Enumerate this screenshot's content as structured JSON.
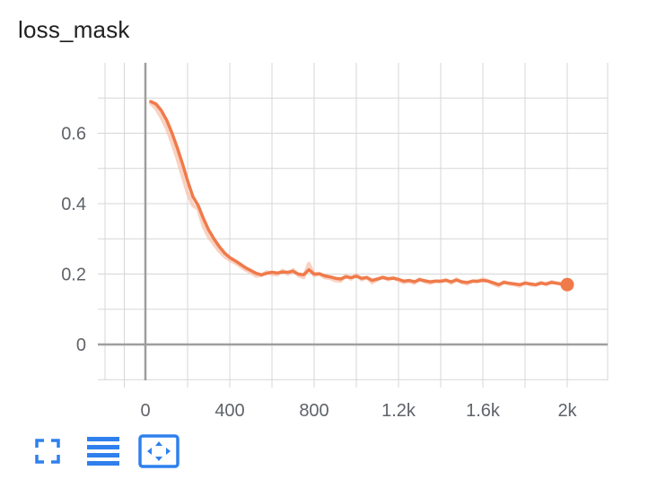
{
  "card": {
    "title": "loss_mask"
  },
  "toolbar": {
    "buttons": [
      {
        "icon": "fullscreen-icon"
      },
      {
        "icon": "data-table-icon"
      },
      {
        "icon": "fit-domain-icon"
      }
    ]
  },
  "colors": {
    "series": "#f07a4a",
    "series_raw": "#f7c3ad",
    "grid": "#d7d7d7",
    "axis": "#9e9e9e",
    "icon": "#2f80ed"
  },
  "chart_data": {
    "type": "line",
    "title": "loss_mask",
    "xlabel": "",
    "ylabel": "",
    "xlim": [
      -100,
      2200
    ],
    "ylim": [
      -0.1,
      0.8
    ],
    "x_ticks": [
      0,
      400,
      800,
      1200,
      1600,
      2000
    ],
    "x_tick_labels": [
      "0",
      "400",
      "800",
      "1.2k",
      "1.6k",
      "2k"
    ],
    "y_ticks": [
      0,
      0.2,
      0.4,
      0.6
    ],
    "y_tick_labels": [
      "0",
      "0.2",
      "0.4",
      "0.6"
    ],
    "grid": true,
    "series": [
      {
        "smoothed": true,
        "x": [
          25,
          50,
          75,
          100,
          125,
          150,
          175,
          200,
          225,
          250,
          275,
          300,
          325,
          350,
          375,
          400,
          425,
          450,
          475,
          500,
          525,
          550,
          575,
          600,
          625,
          650,
          675,
          700,
          725,
          750,
          775,
          800,
          825,
          850,
          875,
          900,
          925,
          950,
          975,
          1000,
          1025,
          1050,
          1075,
          1100,
          1125,
          1150,
          1175,
          1200,
          1225,
          1250,
          1275,
          1300,
          1325,
          1350,
          1375,
          1400,
          1425,
          1450,
          1475,
          1500,
          1525,
          1550,
          1575,
          1600,
          1625,
          1650,
          1675,
          1700,
          1725,
          1750,
          1775,
          1800,
          1825,
          1850,
          1875,
          1900,
          1925,
          1950,
          1975,
          2000
        ],
        "y": [
          0.69,
          0.683,
          0.665,
          0.638,
          0.602,
          0.56,
          0.515,
          0.465,
          0.42,
          0.395,
          0.358,
          0.325,
          0.3,
          0.278,
          0.26,
          0.247,
          0.238,
          0.228,
          0.218,
          0.21,
          0.202,
          0.198,
          0.202,
          0.205,
          0.203,
          0.206,
          0.205,
          0.208,
          0.2,
          0.198,
          0.212,
          0.2,
          0.201,
          0.195,
          0.192,
          0.188,
          0.186,
          0.192,
          0.19,
          0.194,
          0.188,
          0.19,
          0.182,
          0.186,
          0.19,
          0.187,
          0.188,
          0.185,
          0.18,
          0.182,
          0.178,
          0.184,
          0.181,
          0.178,
          0.18,
          0.18,
          0.182,
          0.178,
          0.183,
          0.178,
          0.176,
          0.18,
          0.18,
          0.182,
          0.18,
          0.175,
          0.17,
          0.176,
          0.174,
          0.172,
          0.17,
          0.174,
          0.172,
          0.17,
          0.174,
          0.172,
          0.176,
          0.174,
          0.172,
          0.17
        ]
      },
      {
        "smoothed": false,
        "x": [
          25,
          50,
          75,
          100,
          125,
          150,
          175,
          200,
          225,
          250,
          275,
          300,
          325,
          350,
          375,
          400,
          425,
          450,
          475,
          500,
          525,
          550,
          575,
          600,
          625,
          650,
          675,
          700,
          725,
          750,
          775,
          800,
          825,
          850,
          875,
          900,
          925,
          950,
          975,
          1000,
          1025,
          1050,
          1075,
          1100,
          1125,
          1150,
          1175,
          1200,
          1225,
          1250,
          1275,
          1300,
          1325,
          1350,
          1375,
          1400,
          1425,
          1450,
          1475,
          1500,
          1525,
          1550,
          1575,
          1600,
          1625,
          1650,
          1675,
          1700,
          1725,
          1750,
          1775,
          1800,
          1825,
          1850,
          1875,
          1900,
          1925,
          1950,
          1975,
          2000
        ],
        "y": [
          0.685,
          0.67,
          0.645,
          0.615,
          0.575,
          0.53,
          0.48,
          0.43,
          0.395,
          0.385,
          0.335,
          0.305,
          0.285,
          0.265,
          0.25,
          0.24,
          0.232,
          0.222,
          0.212,
          0.204,
          0.195,
          0.196,
          0.206,
          0.2,
          0.198,
          0.21,
          0.2,
          0.212,
          0.196,
          0.19,
          0.23,
          0.196,
          0.2,
          0.19,
          0.188,
          0.182,
          0.18,
          0.196,
          0.186,
          0.198,
          0.184,
          0.19,
          0.176,
          0.184,
          0.192,
          0.184,
          0.19,
          0.182,
          0.176,
          0.18,
          0.174,
          0.186,
          0.178,
          0.174,
          0.18,
          0.178,
          0.184,
          0.174,
          0.186,
          0.176,
          0.172,
          0.18,
          0.178,
          0.186,
          0.18,
          0.172,
          0.166,
          0.178,
          0.172,
          0.17,
          0.166,
          0.176,
          0.17,
          0.168,
          0.176,
          0.17,
          0.178,
          0.174,
          0.17,
          0.168
        ]
      }
    ]
  }
}
